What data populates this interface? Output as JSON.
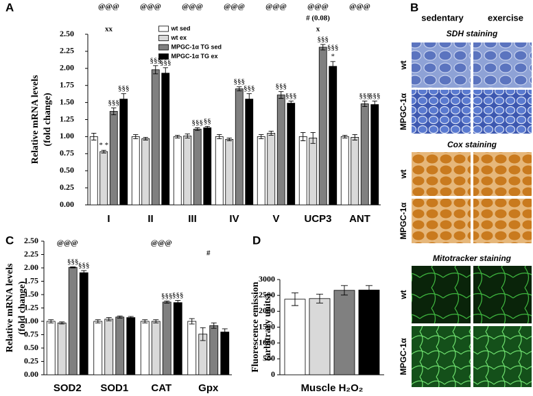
{
  "chart_data": [
    {
      "type": "bar",
      "panel": "A",
      "ylabel": [
        "Relative mRNA levels",
        "(fold change)"
      ],
      "categories": [
        "I",
        "II",
        "III",
        "IV",
        "V",
        "UCP3",
        "ANT"
      ],
      "ylim": [
        0,
        2.5
      ],
      "yticks": [
        {
          "value": 0,
          "label": "0.00"
        },
        {
          "value": 0.25,
          "label": "0.25"
        },
        {
          "value": 0.5,
          "label": "0.50"
        },
        {
          "value": 0.75,
          "label": "0.75"
        },
        {
          "value": 1,
          "label": "1.00"
        },
        {
          "value": 1.25,
          "label": "1.25"
        },
        {
          "value": 1.5,
          "label": "1.50"
        },
        {
          "value": 1.75,
          "label": "1.75"
        },
        {
          "value": 2,
          "label": "2.00"
        },
        {
          "value": 2.25,
          "label": "2.25"
        },
        {
          "value": 2.5,
          "label": "2.50"
        }
      ],
      "legend": "upper center",
      "top_labels": [
        "@@@",
        "@@@",
        "@@@",
        "@@@",
        "@@@",
        "@@@",
        "@@@"
      ],
      "mid_labels": [
        null,
        null,
        null,
        null,
        null,
        "# (0.08)",
        null
      ],
      "low_labels": [
        "xx",
        null,
        null,
        null,
        null,
        "x",
        null
      ],
      "series": [
        {
          "name": "wt sed",
          "color": "#ffffff",
          "values": [
            1.0,
            1.0,
            1.0,
            1.0,
            1.0,
            1.0,
            1.0
          ],
          "errors": [
            0.05,
            0.03,
            0.02,
            0.03,
            0.03,
            0.06,
            0.02
          ]
        },
        {
          "name": "wt ex",
          "color": "#d9d9d9",
          "values": [
            0.78,
            0.97,
            1.01,
            0.96,
            1.05,
            0.98,
            0.99
          ],
          "errors": [
            0.02,
            0.02,
            0.03,
            0.02,
            0.03,
            0.08,
            0.04
          ],
          "labels": [
            "* *",
            null,
            null,
            null,
            null,
            null,
            null
          ]
        },
        {
          "name": "MPGC-1α TG sed",
          "color": "#808080",
          "values": [
            1.37,
            1.98,
            1.11,
            1.7,
            1.61,
            2.31,
            1.48
          ],
          "errors": [
            0.05,
            0.06,
            0.02,
            0.03,
            0.05,
            0.04,
            0.04
          ],
          "labels": [
            "§§§",
            "§§§",
            "§§§",
            "§§§",
            "§§§",
            "§§§",
            "§§§"
          ]
        },
        {
          "name": "MPGC-1α TG ex",
          "color": "#000000",
          "values": [
            1.55,
            1.93,
            1.13,
            1.55,
            1.49,
            2.03,
            1.47
          ],
          "errors": [
            0.08,
            0.08,
            0.02,
            0.08,
            0.03,
            0.07,
            0.05
          ],
          "labels": [
            "§§§",
            "§§§",
            "§§",
            "§§§",
            "§§§",
            "§§§",
            "§§§"
          ],
          "labels2": [
            null,
            null,
            null,
            null,
            null,
            "*",
            null
          ]
        }
      ]
    },
    {
      "type": "bar",
      "panel": "C",
      "ylabel": [
        "Relative mRNA levels",
        "(fold change)"
      ],
      "categories": [
        "SOD2",
        "SOD1",
        "CAT",
        "Gpx"
      ],
      "ylim": [
        0,
        2.5
      ],
      "yticks": [
        {
          "value": 0,
          "label": "0.00"
        },
        {
          "value": 0.25,
          "label": "0.25"
        },
        {
          "value": 0.5,
          "label": "0.50"
        },
        {
          "value": 0.75,
          "label": "0.75"
        },
        {
          "value": 1,
          "label": "1.00"
        },
        {
          "value": 1.25,
          "label": "1.25"
        },
        {
          "value": 1.5,
          "label": "1.50"
        },
        {
          "value": 1.75,
          "label": "1.75"
        },
        {
          "value": 2,
          "label": "2.00"
        },
        {
          "value": 2.25,
          "label": "2.25"
        },
        {
          "value": 2.5,
          "label": "2.50"
        }
      ],
      "top_labels": [
        "@@@",
        null,
        "@@@",
        null
      ],
      "mid_labels": [
        null,
        null,
        null,
        "#"
      ],
      "series": [
        {
          "name": "wt sed",
          "color": "#ffffff",
          "values": [
            1.0,
            1.0,
            1.0,
            1.0
          ],
          "errors": [
            0.03,
            0.03,
            0.03,
            0.05
          ]
        },
        {
          "name": "wt ex",
          "color": "#d9d9d9",
          "values": [
            0.97,
            1.04,
            1.0,
            0.76
          ],
          "errors": [
            0.02,
            0.03,
            0.03,
            0.12
          ]
        },
        {
          "name": "MPGC-1α TG sed",
          "color": "#808080",
          "values": [
            2.01,
            1.08,
            1.36,
            0.92
          ],
          "errors": [
            0.01,
            0.02,
            0.02,
            0.05
          ],
          "labels": [
            "§§§",
            null,
            "§§§",
            null
          ]
        },
        {
          "name": "MPGC-1α TG ex",
          "color": "#000000",
          "values": [
            1.91,
            1.07,
            1.35,
            0.8
          ],
          "errors": [
            0.04,
            0.02,
            0.04,
            0.06
          ],
          "labels": [
            "§§§",
            null,
            "§§§",
            null
          ]
        }
      ]
    },
    {
      "type": "bar",
      "panel": "D",
      "ylabel": [
        "Fluorescence emission",
        "(arbitrary units)"
      ],
      "xlabel": "Muscle H₂O₂",
      "categories": [
        null
      ],
      "ylim": [
        0,
        3000
      ],
      "yticks": [
        0,
        500,
        1000,
        1500,
        2000,
        2500,
        3000
      ],
      "series": [
        {
          "name": "wt sed",
          "color": "#ffffff",
          "values": [
            2380
          ],
          "errors": [
            200
          ]
        },
        {
          "name": "wt ex",
          "color": "#d9d9d9",
          "values": [
            2400
          ],
          "errors": [
            140
          ]
        },
        {
          "name": "MPGC-1α TG sed",
          "color": "#808080",
          "values": [
            2660
          ],
          "errors": [
            150
          ]
        },
        {
          "name": "MPGC-1α TG ex",
          "color": "#000000",
          "values": [
            2670
          ],
          "errors": [
            140
          ]
        }
      ]
    }
  ],
  "panel_b": {
    "label": "B",
    "columns": [
      "sedentary",
      "exercise"
    ],
    "stains": [
      {
        "title": "SDH staining",
        "rows": [
          "wt",
          "MPGC-1α"
        ]
      },
      {
        "title": "Cox staining",
        "rows": [
          "wt",
          "MPGC-1α"
        ]
      },
      {
        "title": "Mitotracker staining",
        "rows": [
          "wt",
          "MPGC-1α"
        ]
      }
    ]
  }
}
